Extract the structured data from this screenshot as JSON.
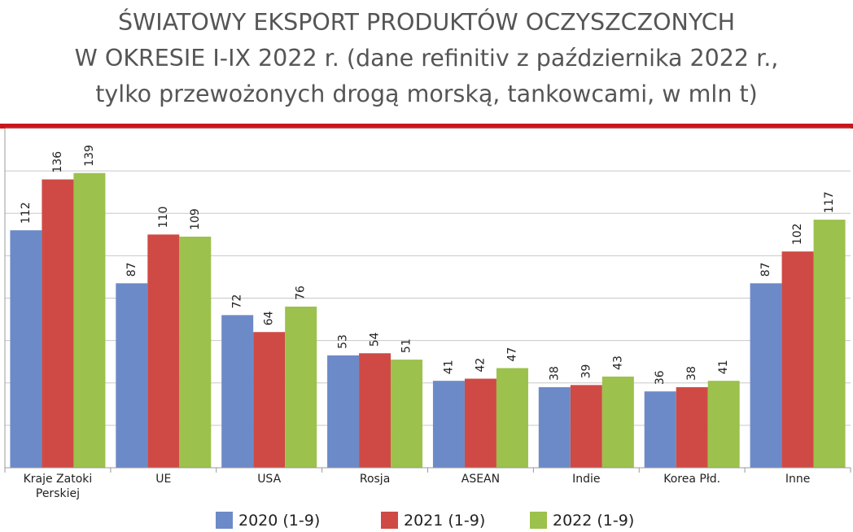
{
  "title_lines": [
    "ŚWIATOWY EKSPORT PRODUKTÓW OCZYSZCZONYCH",
    "W OKRESIE I-IX 2022 r. (dane refinitiv z października  2022 r.,",
    "tylko przewożonych drogą morską, tankowcami, w mln t)"
  ],
  "colors": {
    "rule": "#c8161d",
    "grid": "#c8c8c8",
    "axis": "#999999",
    "series": [
      "#6d8ac8",
      "#cf4a45",
      "#9cc14c"
    ]
  },
  "chart_data": {
    "type": "bar",
    "title": "ŚWIATOWY EKSPORT PRODUKTÓW OCZYSZCZONYCH W OKRESIE I-IX 2022 r. (dane refinitiv z października  2022 r., tylko przewożonych drogą morską, tankowcami, w mln t)",
    "categories": [
      [
        "Kraje Zatoki",
        "Perskiej"
      ],
      [
        "UE"
      ],
      [
        "USA"
      ],
      [
        "Rosja"
      ],
      [
        "ASEAN"
      ],
      [
        "Indie"
      ],
      [
        "Korea Płd."
      ],
      [
        "Inne"
      ]
    ],
    "series": [
      {
        "name": "2020 (1-9)",
        "values": [
          112,
          87,
          72,
          53,
          41,
          38,
          36,
          87
        ]
      },
      {
        "name": "2021 (1-9)",
        "values": [
          136,
          110,
          64,
          54,
          42,
          39,
          38,
          102
        ]
      },
      {
        "name": "2022 (1-9)",
        "values": [
          139,
          109,
          76,
          51,
          47,
          43,
          41,
          117
        ]
      }
    ],
    "ylim": [
      0,
      160
    ],
    "gridline_step": 20,
    "y_tick_labels_shown": false,
    "data_labels": true,
    "data_label_rotation": "vertical",
    "grid": true,
    "legend": "bottom"
  }
}
